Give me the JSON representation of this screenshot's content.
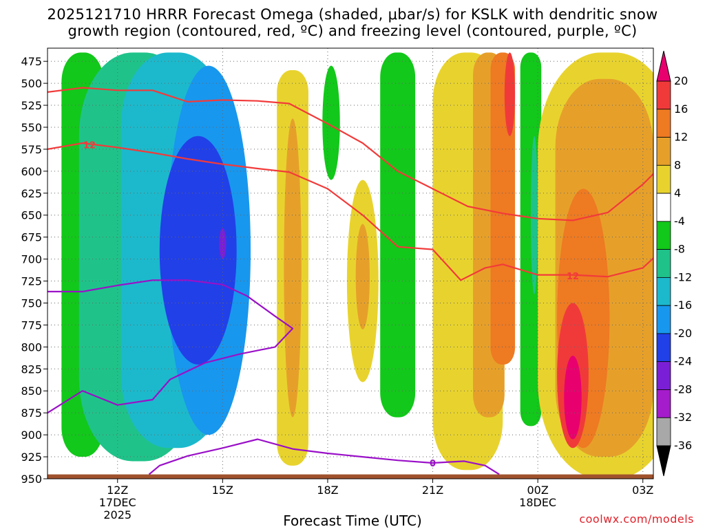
{
  "header": {
    "title_line1": "2025121710 HRRR Forecast Omega (shaded, μbar/s) for KSLK with dendritic snow",
    "title_line2": "growth region (contoured, red, ºC) and freezing level (contoured, purple, ºC)"
  },
  "footer": {
    "x_title": "Forecast Time (UTC)",
    "credit": "coolwx.com/models"
  },
  "chart_data": {
    "type": "heatmap",
    "title": "2025121710 HRRR Forecast Omega (shaded, μbar/s) for KSLK with dendritic snow growth region (contoured, red, ºC) and freezing level (contoured, purple, ºC)",
    "xlabel": "Forecast Time (UTC)",
    "ylabel": "",
    "x_range_hours_utc": [
      10,
      27.3
    ],
    "y_range_mb": [
      950,
      460
    ],
    "y_ticks": [
      475,
      500,
      525,
      550,
      575,
      600,
      625,
      650,
      675,
      700,
      725,
      750,
      775,
      800,
      825,
      850,
      875,
      900,
      925,
      950
    ],
    "x_ticks": [
      {
        "hour": 12,
        "label": "12Z",
        "sub1": "17DEC",
        "sub2": "2025"
      },
      {
        "hour": 15,
        "label": "15Z",
        "sub1": "",
        "sub2": ""
      },
      {
        "hour": 18,
        "label": "18Z",
        "sub1": "",
        "sub2": ""
      },
      {
        "hour": 21,
        "label": "21Z",
        "sub1": "",
        "sub2": ""
      },
      {
        "hour": 24,
        "label": "00Z",
        "sub1": "18DEC",
        "sub2": ""
      },
      {
        "hour": 27,
        "label": "03Z",
        "sub1": "",
        "sub2": ""
      }
    ],
    "grid": true,
    "colorbar": {
      "labels": [
        "20",
        "16",
        "12",
        "8",
        "4",
        "-4",
        "-8",
        "-12",
        "-16",
        "-20",
        "-24",
        "-28",
        "-32",
        "-36"
      ],
      "bins": [
        {
          "lo": 20,
          "hi": 99,
          "color": "#e8006e"
        },
        {
          "lo": 16,
          "hi": 20,
          "color": "#f03a3a"
        },
        {
          "lo": 12,
          "hi": 16,
          "color": "#ee7a22"
        },
        {
          "lo": 8,
          "hi": 12,
          "color": "#e6a02a"
        },
        {
          "lo": 4,
          "hi": 8,
          "color": "#e8d32e"
        },
        {
          "lo": -4,
          "hi": 4,
          "color": "#ffffff"
        },
        {
          "lo": -8,
          "hi": -4,
          "color": "#12c81a"
        },
        {
          "lo": -12,
          "hi": -8,
          "color": "#1fc38a"
        },
        {
          "lo": -16,
          "hi": -12,
          "color": "#1cb9cc"
        },
        {
          "lo": -20,
          "hi": -16,
          "color": "#1897ee"
        },
        {
          "lo": -24,
          "hi": -20,
          "color": "#2140e8"
        },
        {
          "lo": -28,
          "hi": -24,
          "color": "#7b1fd6"
        },
        {
          "lo": -32,
          "hi": -28,
          "color": "#a41ccc"
        },
        {
          "lo": -36,
          "hi": -32,
          "color": "#a8a8a8"
        },
        {
          "lo": -99,
          "hi": -36,
          "color": "#000000"
        }
      ]
    },
    "omega_features": [
      {
        "type": "band",
        "value": -6,
        "x_center": 11.0,
        "x_half_width": 0.6,
        "p_min": 465,
        "p_max": 925
      },
      {
        "type": "band",
        "value": -10,
        "x_center": 12.6,
        "x_half_width": 1.7,
        "p_min": 465,
        "p_max": 930
      },
      {
        "type": "band",
        "value": -14,
        "x_center": 13.6,
        "x_half_width": 1.5,
        "p_min": 465,
        "p_max": 915
      },
      {
        "type": "blob",
        "value": -18,
        "x_center": 14.6,
        "x_half_width": 1.2,
        "p_min": 480,
        "p_max": 900
      },
      {
        "type": "blob",
        "value": -22,
        "x_center": 14.3,
        "x_half_width": 1.1,
        "p_min": 560,
        "p_max": 820
      },
      {
        "type": "blob",
        "value": -26,
        "x_center": 15.0,
        "x_half_width": 0.1,
        "p_min": 665,
        "p_max": 700
      },
      {
        "type": "band",
        "value": 6,
        "x_center": 17.0,
        "x_half_width": 0.45,
        "p_min": 485,
        "p_max": 935
      },
      {
        "type": "blob",
        "value": 10,
        "x_center": 17.0,
        "x_half_width": 0.25,
        "p_min": 540,
        "p_max": 880
      },
      {
        "type": "blob",
        "value": -6,
        "x_center": 18.1,
        "x_half_width": 0.25,
        "p_min": 480,
        "p_max": 610
      },
      {
        "type": "blob",
        "value": 6,
        "x_center": 19.0,
        "x_half_width": 0.45,
        "p_min": 610,
        "p_max": 840
      },
      {
        "type": "blob",
        "value": 10,
        "x_center": 19.0,
        "x_half_width": 0.2,
        "p_min": 660,
        "p_max": 780
      },
      {
        "type": "band",
        "value": -6,
        "x_center": 20.0,
        "x_half_width": 0.5,
        "p_min": 465,
        "p_max": 880
      },
      {
        "type": "band",
        "value": 6,
        "x_center": 22.0,
        "x_half_width": 1.0,
        "p_min": 465,
        "p_max": 940
      },
      {
        "type": "band",
        "value": 10,
        "x_center": 22.6,
        "x_half_width": 0.45,
        "p_min": 465,
        "p_max": 880
      },
      {
        "type": "band",
        "value": 14,
        "x_center": 23.0,
        "x_half_width": 0.35,
        "p_min": 465,
        "p_max": 820
      },
      {
        "type": "blob",
        "value": 18,
        "x_center": 23.2,
        "x_half_width": 0.15,
        "p_min": 465,
        "p_max": 560
      },
      {
        "type": "band",
        "value": -6,
        "x_center": 23.8,
        "x_half_width": 0.3,
        "p_min": 465,
        "p_max": 890
      },
      {
        "type": "blob",
        "value": -10,
        "x_center": 23.9,
        "x_half_width": 0.1,
        "p_min": 560,
        "p_max": 740
      },
      {
        "type": "band",
        "value": 6,
        "x_center": 26.0,
        "x_half_width": 2.0,
        "p_min": 465,
        "p_max": 950
      },
      {
        "type": "band",
        "value": 10,
        "x_center": 25.9,
        "x_half_width": 1.4,
        "p_min": 495,
        "p_max": 925
      },
      {
        "type": "blob",
        "value": 14,
        "x_center": 25.3,
        "x_half_width": 0.75,
        "p_min": 620,
        "p_max": 915
      },
      {
        "type": "blob",
        "value": 18,
        "x_center": 25.0,
        "x_half_width": 0.45,
        "p_min": 750,
        "p_max": 915
      },
      {
        "type": "blob",
        "value": 22,
        "x_center": 25.0,
        "x_half_width": 0.25,
        "p_min": 810,
        "p_max": 905
      }
    ],
    "dendritic_contours": {
      "color": "#f23a3a",
      "labels": [
        "12"
      ],
      "lines": [
        {
          "points": [
            [
              10,
              510
            ],
            [
              11,
              505
            ],
            [
              12,
              508
            ],
            [
              13,
              508
            ],
            [
              14,
              521
            ],
            [
              15,
              519
            ],
            [
              16,
              520
            ],
            [
              16.9,
              523
            ],
            [
              18,
              546
            ],
            [
              19,
              568
            ],
            [
              20,
              600
            ],
            [
              21,
              620
            ],
            [
              22,
              640
            ],
            [
              23,
              648
            ],
            [
              24,
              654
            ],
            [
              25,
              656
            ],
            [
              26,
              647
            ],
            [
              27,
              615
            ],
            [
              27.3,
              603
            ]
          ]
        },
        {
          "points": [
            [
              10,
              575
            ],
            [
              11,
              568
            ],
            [
              12,
              573
            ],
            [
              13,
              579
            ],
            [
              14,
              586
            ],
            [
              15,
              592
            ],
            [
              16,
              597
            ],
            [
              16.9,
              601
            ],
            [
              18,
              620
            ],
            [
              19,
              650
            ],
            [
              20,
              686
            ],
            [
              21,
              689
            ],
            [
              21.8,
              724
            ],
            [
              22.5,
              710
            ],
            [
              23,
              706
            ],
            [
              24,
              718
            ],
            [
              25,
              718
            ],
            [
              26,
              720
            ],
            [
              27,
              710
            ],
            [
              27.3,
              699
            ]
          ]
        }
      ]
    },
    "freezing_level": {
      "color": "#9a10c8",
      "label": "0",
      "lines": [
        {
          "points": [
            [
              10,
              737
            ],
            [
              11,
              737
            ],
            [
              12,
              730
            ],
            [
              13,
              724
            ],
            [
              14,
              724
            ],
            [
              15,
              729
            ],
            [
              15.7,
              742
            ],
            [
              16.5,
              765
            ],
            [
              17,
              779
            ],
            [
              16.5,
              800
            ],
            [
              15.5,
              808
            ],
            [
              14.5,
              818
            ],
            [
              13.5,
              837
            ],
            [
              13,
              860
            ],
            [
              12,
              866
            ],
            [
              11,
              850
            ],
            [
              10,
              875
            ]
          ]
        },
        {
          "points": [
            [
              12.9,
              945
            ],
            [
              13.2,
              935
            ],
            [
              14,
              924
            ],
            [
              15,
              915
            ],
            [
              16,
              905
            ],
            [
              17,
              916
            ],
            [
              18,
              921
            ],
            [
              19,
              925
            ],
            [
              20,
              929
            ],
            [
              21,
              932
            ],
            [
              21.9,
              930
            ],
            [
              22.5,
              935
            ],
            [
              22.9,
              945
            ]
          ]
        }
      ]
    },
    "ground_mb": 945
  }
}
